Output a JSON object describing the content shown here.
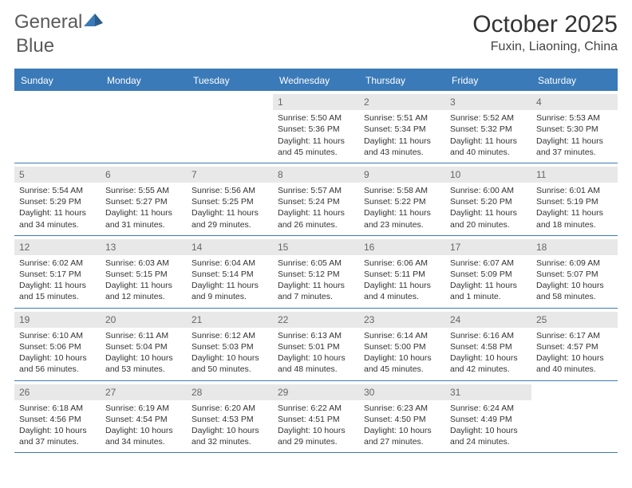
{
  "logo": {
    "text1": "General",
    "text2": "Blue",
    "text_color": "#5a5a5a",
    "accent_color": "#3a7ab8"
  },
  "title": "October 2025",
  "location": "Fuxin, Liaoning, China",
  "colors": {
    "header_bg": "#3a7ab8",
    "header_text": "#ffffff",
    "daynum_bg": "#e8e8e8",
    "daynum_text": "#666666",
    "border": "#3a7ab8",
    "body_text": "#333333"
  },
  "day_names": [
    "Sunday",
    "Monday",
    "Tuesday",
    "Wednesday",
    "Thursday",
    "Friday",
    "Saturday"
  ],
  "weeks": [
    [
      {
        "n": "",
        "sunrise": "",
        "sunset": "",
        "daylight": ""
      },
      {
        "n": "",
        "sunrise": "",
        "sunset": "",
        "daylight": ""
      },
      {
        "n": "",
        "sunrise": "",
        "sunset": "",
        "daylight": ""
      },
      {
        "n": "1",
        "sunrise": "Sunrise: 5:50 AM",
        "sunset": "Sunset: 5:36 PM",
        "daylight": "Daylight: 11 hours and 45 minutes."
      },
      {
        "n": "2",
        "sunrise": "Sunrise: 5:51 AM",
        "sunset": "Sunset: 5:34 PM",
        "daylight": "Daylight: 11 hours and 43 minutes."
      },
      {
        "n": "3",
        "sunrise": "Sunrise: 5:52 AM",
        "sunset": "Sunset: 5:32 PM",
        "daylight": "Daylight: 11 hours and 40 minutes."
      },
      {
        "n": "4",
        "sunrise": "Sunrise: 5:53 AM",
        "sunset": "Sunset: 5:30 PM",
        "daylight": "Daylight: 11 hours and 37 minutes."
      }
    ],
    [
      {
        "n": "5",
        "sunrise": "Sunrise: 5:54 AM",
        "sunset": "Sunset: 5:29 PM",
        "daylight": "Daylight: 11 hours and 34 minutes."
      },
      {
        "n": "6",
        "sunrise": "Sunrise: 5:55 AM",
        "sunset": "Sunset: 5:27 PM",
        "daylight": "Daylight: 11 hours and 31 minutes."
      },
      {
        "n": "7",
        "sunrise": "Sunrise: 5:56 AM",
        "sunset": "Sunset: 5:25 PM",
        "daylight": "Daylight: 11 hours and 29 minutes."
      },
      {
        "n": "8",
        "sunrise": "Sunrise: 5:57 AM",
        "sunset": "Sunset: 5:24 PM",
        "daylight": "Daylight: 11 hours and 26 minutes."
      },
      {
        "n": "9",
        "sunrise": "Sunrise: 5:58 AM",
        "sunset": "Sunset: 5:22 PM",
        "daylight": "Daylight: 11 hours and 23 minutes."
      },
      {
        "n": "10",
        "sunrise": "Sunrise: 6:00 AM",
        "sunset": "Sunset: 5:20 PM",
        "daylight": "Daylight: 11 hours and 20 minutes."
      },
      {
        "n": "11",
        "sunrise": "Sunrise: 6:01 AM",
        "sunset": "Sunset: 5:19 PM",
        "daylight": "Daylight: 11 hours and 18 minutes."
      }
    ],
    [
      {
        "n": "12",
        "sunrise": "Sunrise: 6:02 AM",
        "sunset": "Sunset: 5:17 PM",
        "daylight": "Daylight: 11 hours and 15 minutes."
      },
      {
        "n": "13",
        "sunrise": "Sunrise: 6:03 AM",
        "sunset": "Sunset: 5:15 PM",
        "daylight": "Daylight: 11 hours and 12 minutes."
      },
      {
        "n": "14",
        "sunrise": "Sunrise: 6:04 AM",
        "sunset": "Sunset: 5:14 PM",
        "daylight": "Daylight: 11 hours and 9 minutes."
      },
      {
        "n": "15",
        "sunrise": "Sunrise: 6:05 AM",
        "sunset": "Sunset: 5:12 PM",
        "daylight": "Daylight: 11 hours and 7 minutes."
      },
      {
        "n": "16",
        "sunrise": "Sunrise: 6:06 AM",
        "sunset": "Sunset: 5:11 PM",
        "daylight": "Daylight: 11 hours and 4 minutes."
      },
      {
        "n": "17",
        "sunrise": "Sunrise: 6:07 AM",
        "sunset": "Sunset: 5:09 PM",
        "daylight": "Daylight: 11 hours and 1 minute."
      },
      {
        "n": "18",
        "sunrise": "Sunrise: 6:09 AM",
        "sunset": "Sunset: 5:07 PM",
        "daylight": "Daylight: 10 hours and 58 minutes."
      }
    ],
    [
      {
        "n": "19",
        "sunrise": "Sunrise: 6:10 AM",
        "sunset": "Sunset: 5:06 PM",
        "daylight": "Daylight: 10 hours and 56 minutes."
      },
      {
        "n": "20",
        "sunrise": "Sunrise: 6:11 AM",
        "sunset": "Sunset: 5:04 PM",
        "daylight": "Daylight: 10 hours and 53 minutes."
      },
      {
        "n": "21",
        "sunrise": "Sunrise: 6:12 AM",
        "sunset": "Sunset: 5:03 PM",
        "daylight": "Daylight: 10 hours and 50 minutes."
      },
      {
        "n": "22",
        "sunrise": "Sunrise: 6:13 AM",
        "sunset": "Sunset: 5:01 PM",
        "daylight": "Daylight: 10 hours and 48 minutes."
      },
      {
        "n": "23",
        "sunrise": "Sunrise: 6:14 AM",
        "sunset": "Sunset: 5:00 PM",
        "daylight": "Daylight: 10 hours and 45 minutes."
      },
      {
        "n": "24",
        "sunrise": "Sunrise: 6:16 AM",
        "sunset": "Sunset: 4:58 PM",
        "daylight": "Daylight: 10 hours and 42 minutes."
      },
      {
        "n": "25",
        "sunrise": "Sunrise: 6:17 AM",
        "sunset": "Sunset: 4:57 PM",
        "daylight": "Daylight: 10 hours and 40 minutes."
      }
    ],
    [
      {
        "n": "26",
        "sunrise": "Sunrise: 6:18 AM",
        "sunset": "Sunset: 4:56 PM",
        "daylight": "Daylight: 10 hours and 37 minutes."
      },
      {
        "n": "27",
        "sunrise": "Sunrise: 6:19 AM",
        "sunset": "Sunset: 4:54 PM",
        "daylight": "Daylight: 10 hours and 34 minutes."
      },
      {
        "n": "28",
        "sunrise": "Sunrise: 6:20 AM",
        "sunset": "Sunset: 4:53 PM",
        "daylight": "Daylight: 10 hours and 32 minutes."
      },
      {
        "n": "29",
        "sunrise": "Sunrise: 6:22 AM",
        "sunset": "Sunset: 4:51 PM",
        "daylight": "Daylight: 10 hours and 29 minutes."
      },
      {
        "n": "30",
        "sunrise": "Sunrise: 6:23 AM",
        "sunset": "Sunset: 4:50 PM",
        "daylight": "Daylight: 10 hours and 27 minutes."
      },
      {
        "n": "31",
        "sunrise": "Sunrise: 6:24 AM",
        "sunset": "Sunset: 4:49 PM",
        "daylight": "Daylight: 10 hours and 24 minutes."
      },
      {
        "n": "",
        "sunrise": "",
        "sunset": "",
        "daylight": ""
      }
    ]
  ]
}
